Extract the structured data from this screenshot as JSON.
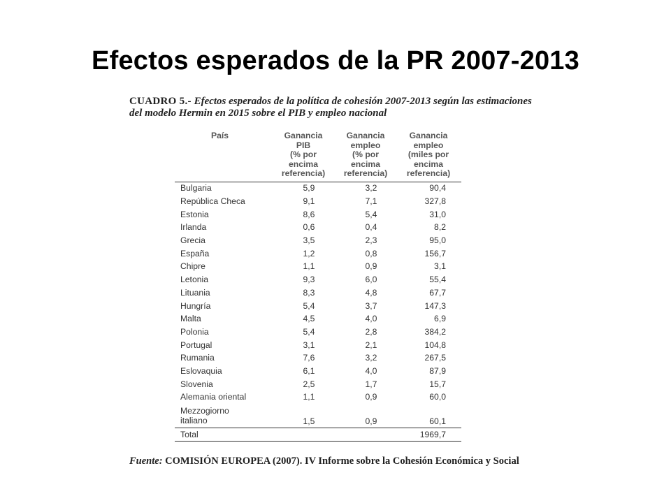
{
  "slide": {
    "title": "Efectos esperados de la PR 2007-2013"
  },
  "caption": {
    "lead": "CUADRO 5.-",
    "text": "Efectos esperados de la política de cohesión 2007-2013 según las estimaciones del modelo Hermin en 2015 sobre el PIB y empleo nacional"
  },
  "table": {
    "headers": {
      "country": "País",
      "gdp": [
        "Ganancia",
        "PIB",
        "(% por",
        "encima",
        "referencia)"
      ],
      "emp_pct": [
        "Ganancia",
        "empleo",
        "(% por",
        "encima",
        "referencia)"
      ],
      "emp_k": [
        "Ganancia",
        "empleo",
        "(miles por",
        "encima",
        "referencia)"
      ]
    },
    "rows": [
      {
        "country": "Bulgaria",
        "gdp": "5,9",
        "emp_pct": "3,2",
        "emp_k": "90,4"
      },
      {
        "country": "República Checa",
        "gdp": "9,1",
        "emp_pct": "7,1",
        "emp_k": "327,8"
      },
      {
        "country": "Estonia",
        "gdp": "8,6",
        "emp_pct": "5,4",
        "emp_k": "31,0"
      },
      {
        "country": "Irlanda",
        "gdp": "0,6",
        "emp_pct": "0,4",
        "emp_k": "8,2"
      },
      {
        "country": "Grecia",
        "gdp": "3,5",
        "emp_pct": "2,3",
        "emp_k": "95,0"
      },
      {
        "country": "España",
        "gdp": "1,2",
        "emp_pct": "0,8",
        "emp_k": "156,7"
      },
      {
        "country": "Chipre",
        "gdp": "1,1",
        "emp_pct": "0,9",
        "emp_k": "3,1"
      },
      {
        "country": "Letonia",
        "gdp": "9,3",
        "emp_pct": "6,0",
        "emp_k": "55,4"
      },
      {
        "country": "Lituania",
        "gdp": "8,3",
        "emp_pct": "4,8",
        "emp_k": "67,7"
      },
      {
        "country": "Hungría",
        "gdp": "5,4",
        "emp_pct": "3,7",
        "emp_k": "147,3"
      },
      {
        "country": "Malta",
        "gdp": "4,5",
        "emp_pct": "4,0",
        "emp_k": "6,9"
      },
      {
        "country": "Polonia",
        "gdp": "5,4",
        "emp_pct": "2,8",
        "emp_k": "384,2"
      },
      {
        "country": "Portugal",
        "gdp": "3,1",
        "emp_pct": "2,1",
        "emp_k": "104,8"
      },
      {
        "country": "Rumania",
        "gdp": "7,6",
        "emp_pct": "3,2",
        "emp_k": "267,5"
      },
      {
        "country": "Eslovaquia",
        "gdp": "6,1",
        "emp_pct": "4,0",
        "emp_k": "87,9"
      },
      {
        "country": "Slovenia",
        "gdp": "2,5",
        "emp_pct": "1,7",
        "emp_k": "15,7"
      },
      {
        "country": "Alemania oriental",
        "gdp": "1,1",
        "emp_pct": "0,9",
        "emp_k": "60,0"
      },
      {
        "country": "Mezzogiorno italiano",
        "gdp": "1,5",
        "emp_pct": "0,9",
        "emp_k": "60,1"
      }
    ],
    "total": {
      "country": "Total",
      "gdp": "",
      "emp_pct": "",
      "emp_k": "1969,7"
    }
  },
  "source": {
    "label": "Fuente:",
    "text": "COMISIÓN EUROPEA (2007). IV Informe sobre la Cohesión Económica y Social"
  }
}
